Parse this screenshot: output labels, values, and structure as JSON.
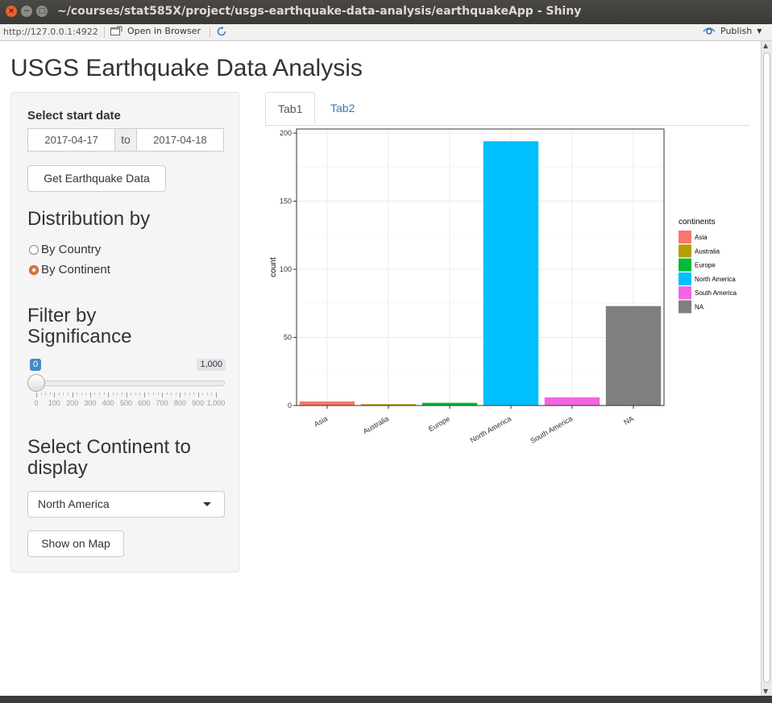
{
  "window": {
    "title": "~/courses/stat585X/project/usgs-earthquake-data-analysis/earthquakeApp - Shiny",
    "close_glyph": "×",
    "min_glyph": "−",
    "max_glyph": "□"
  },
  "toolbar": {
    "url": "http://127.0.0.1:4922",
    "open_browser": "Open in Browser",
    "publish": "Publish"
  },
  "app": {
    "title": "USGS Earthquake Data Analysis"
  },
  "sidebar": {
    "start_date_label": "Select start date",
    "date_from": "2017-04-17",
    "date_sep": "to",
    "date_to": "2017-04-18",
    "get_data_button": "Get Earthquake Data",
    "distribution_heading": "Distribution by",
    "radio_country": "By Country",
    "radio_continent": "By Continent",
    "selected_radio": "By Continent",
    "filter_heading_line1": "Filter by",
    "filter_heading_line2": "Significance",
    "slider": {
      "min_label": "0",
      "max_label": "1,000",
      "value": 0,
      "min": 0,
      "max": 1000,
      "ticks": [
        "0",
        "100",
        "200",
        "300",
        "400",
        "500",
        "600",
        "700",
        "800",
        "900",
        "1,000"
      ]
    },
    "continent_heading_line1": "Select Continent to",
    "continent_heading_line2": "display",
    "continent_selected": "North America",
    "show_map_button": "Show on Map"
  },
  "tabs": [
    {
      "label": "Tab1",
      "active": true
    },
    {
      "label": "Tab2",
      "active": false
    }
  ],
  "chart_data": {
    "type": "bar",
    "categories": [
      "Asia",
      "Australia",
      "Europe",
      "North America",
      "South America",
      "NA"
    ],
    "values": [
      3,
      1,
      2,
      194,
      6,
      73
    ],
    "colors": [
      "#F8766D",
      "#B79F00",
      "#00BA38",
      "#00BFFF",
      "#F564E3",
      "#7F7F7F"
    ],
    "ylabel": "count",
    "xlabel": "",
    "ylim": [
      0,
      203
    ],
    "yticks": [
      0,
      50,
      100,
      150,
      200
    ],
    "grid": true,
    "legend": {
      "title": "continents",
      "placement": "right",
      "entries": [
        "Asia",
        "Australia",
        "Europe",
        "North America",
        "South America",
        "NA"
      ]
    }
  }
}
